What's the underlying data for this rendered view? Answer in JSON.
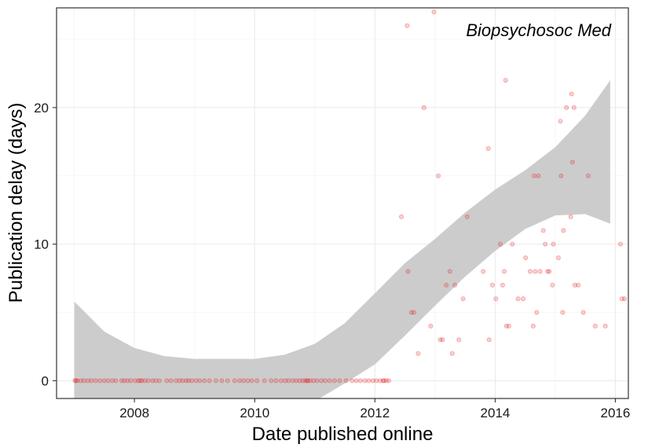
{
  "chart_data": {
    "type": "scatter",
    "annotation": "Biopsychosoc Med",
    "xlabel": "Date published online",
    "ylabel": "Publication delay (days)",
    "xlim": [
      "2006-09-15",
      "2016-03-20"
    ],
    "ylim": [
      -1.3,
      27.3
    ],
    "x_ticks": [
      {
        "date": "2008-01-01",
        "label": "2008"
      },
      {
        "date": "2010-01-01",
        "label": "2010"
      },
      {
        "date": "2012-01-01",
        "label": "2012"
      },
      {
        "date": "2014-01-01",
        "label": "2014"
      },
      {
        "date": "2016-01-01",
        "label": "2016"
      }
    ],
    "y_ticks": [
      0,
      10,
      20
    ],
    "grid": true,
    "point_color": "#e41a1c",
    "band_color": "#cccccc",
    "series": [
      {
        "points": [
          [
            "2007-01-05",
            0
          ],
          [
            "2007-01-20",
            0
          ],
          [
            "2007-02-10",
            0
          ],
          [
            "2007-03-01",
            0
          ],
          [
            "2007-03-25",
            0
          ],
          [
            "2007-04-15",
            0
          ],
          [
            "2007-05-10",
            0
          ],
          [
            "2007-06-05",
            0
          ],
          [
            "2007-07-01",
            0
          ],
          [
            "2007-07-25",
            0
          ],
          [
            "2007-08-20",
            0
          ],
          [
            "2007-09-10",
            0
          ],
          [
            "2007-10-15",
            0
          ],
          [
            "2007-11-01",
            0
          ],
          [
            "2007-11-20",
            0
          ],
          [
            "2007-12-10",
            0
          ],
          [
            "2008-01-05",
            0
          ],
          [
            "2008-01-25",
            0
          ],
          [
            "2008-02-15",
            0
          ],
          [
            "2008-03-05",
            0
          ],
          [
            "2008-03-25",
            0
          ],
          [
            "2008-04-20",
            0
          ],
          [
            "2008-05-10",
            0
          ],
          [
            "2008-06-01",
            0
          ],
          [
            "2008-07-15",
            0
          ],
          [
            "2008-08-10",
            0
          ],
          [
            "2008-09-10",
            0
          ],
          [
            "2008-10-01",
            0
          ],
          [
            "2008-10-20",
            0
          ],
          [
            "2008-11-10",
            0
          ],
          [
            "2008-11-25",
            0
          ],
          [
            "2008-12-15",
            0
          ],
          [
            "2009-01-10",
            0
          ],
          [
            "2009-02-01",
            0
          ],
          [
            "2009-03-01",
            0
          ],
          [
            "2009-04-01",
            0
          ],
          [
            "2009-05-10",
            0
          ],
          [
            "2009-06-15",
            0
          ],
          [
            "2009-07-20",
            0
          ],
          [
            "2009-09-01",
            0
          ],
          [
            "2009-10-01",
            0
          ],
          [
            "2009-10-25",
            0
          ],
          [
            "2009-11-20",
            0
          ],
          [
            "2009-12-15",
            0
          ],
          [
            "2010-01-15",
            0
          ],
          [
            "2010-03-01",
            0
          ],
          [
            "2010-04-10",
            0
          ],
          [
            "2010-05-10",
            0
          ],
          [
            "2010-06-10",
            0
          ],
          [
            "2010-07-05",
            0
          ],
          [
            "2010-07-25",
            0
          ],
          [
            "2010-08-20",
            0
          ],
          [
            "2010-09-10",
            0
          ],
          [
            "2010-10-01",
            0
          ],
          [
            "2010-10-20",
            0
          ],
          [
            "2010-11-05",
            0
          ],
          [
            "2010-11-20",
            0
          ],
          [
            "2010-12-05",
            0
          ],
          [
            "2010-12-25",
            0
          ],
          [
            "2011-01-15",
            0
          ],
          [
            "2011-02-10",
            0
          ],
          [
            "2011-03-05",
            0
          ],
          [
            "2011-04-01",
            0
          ],
          [
            "2011-05-01",
            0
          ],
          [
            "2011-06-01",
            0
          ],
          [
            "2011-07-10",
            0
          ],
          [
            "2011-08-15",
            0
          ],
          [
            "2011-09-10",
            0
          ],
          [
            "2011-10-05",
            0
          ],
          [
            "2011-11-01",
            0
          ],
          [
            "2011-11-25",
            0
          ],
          [
            "2011-12-20",
            0
          ],
          [
            "2012-01-10",
            0
          ],
          [
            "2012-02-01",
            0
          ],
          [
            "2012-02-20",
            0
          ],
          [
            "2012-03-10",
            0
          ],
          [
            "2012-03-25",
            0
          ],
          [
            "2012-06-10",
            12
          ],
          [
            "2012-07-15",
            26
          ],
          [
            "2012-07-20",
            8
          ],
          [
            "2012-08-10",
            5
          ],
          [
            "2012-08-25",
            5
          ],
          [
            "2012-09-20",
            2
          ],
          [
            "2012-10-25",
            20
          ],
          [
            "2012-12-05",
            4
          ],
          [
            "2012-12-25",
            27
          ],
          [
            "2013-01-20",
            15
          ],
          [
            "2013-02-01",
            3
          ],
          [
            "2013-02-15",
            3
          ],
          [
            "2013-03-10",
            7
          ],
          [
            "2013-04-01",
            8
          ],
          [
            "2013-04-15",
            2
          ],
          [
            "2013-05-01",
            7
          ],
          [
            "2013-05-25",
            3
          ],
          [
            "2013-06-20",
            6
          ],
          [
            "2013-07-15",
            12
          ],
          [
            "2013-10-20",
            8
          ],
          [
            "2013-11-20",
            17
          ],
          [
            "2013-11-25",
            3
          ],
          [
            "2013-12-15",
            7
          ],
          [
            "2014-01-05",
            6
          ],
          [
            "2014-02-01",
            10
          ],
          [
            "2014-02-15",
            7
          ],
          [
            "2014-02-25",
            8
          ],
          [
            "2014-03-05",
            22
          ],
          [
            "2014-03-10",
            4
          ],
          [
            "2014-03-25",
            4
          ],
          [
            "2014-04-15",
            10
          ],
          [
            "2014-05-20",
            6
          ],
          [
            "2014-06-20",
            6
          ],
          [
            "2014-07-05",
            9
          ],
          [
            "2014-08-01",
            8
          ],
          [
            "2014-08-20",
            4
          ],
          [
            "2014-08-25",
            15
          ],
          [
            "2014-09-01",
            8
          ],
          [
            "2014-09-10",
            5
          ],
          [
            "2014-09-20",
            15
          ],
          [
            "2014-10-01",
            8
          ],
          [
            "2014-10-20",
            11
          ],
          [
            "2014-11-01",
            10
          ],
          [
            "2014-11-15",
            8
          ],
          [
            "2014-11-25",
            8
          ],
          [
            "2014-12-15",
            7
          ],
          [
            "2014-12-20",
            10
          ],
          [
            "2015-01-20",
            9
          ],
          [
            "2015-02-01",
            19
          ],
          [
            "2015-02-05",
            15
          ],
          [
            "2015-02-15",
            5
          ],
          [
            "2015-02-20",
            11
          ],
          [
            "2015-03-10",
            20
          ],
          [
            "2015-04-05",
            12
          ],
          [
            "2015-04-10",
            21
          ],
          [
            "2015-04-15",
            16
          ],
          [
            "2015-04-25",
            20
          ],
          [
            "2015-04-30",
            7
          ],
          [
            "2015-05-20",
            7
          ],
          [
            "2015-06-20",
            5
          ],
          [
            "2015-07-20",
            15
          ],
          [
            "2015-09-01",
            4
          ],
          [
            "2015-11-01",
            4
          ],
          [
            "2016-02-01",
            10
          ],
          [
            "2016-02-10",
            6
          ],
          [
            "2016-02-25",
            6
          ],
          [
            "2007-01-10",
            0
          ],
          [
            "2008-02-05",
            0
          ],
          [
            "2010-11-15",
            0
          ],
          [
            "2012-02-25",
            0
          ]
        ]
      }
    ],
    "smooth_band": {
      "x": [
        "2007-01-01",
        "2007-07-01",
        "2008-01-01",
        "2008-07-01",
        "2009-01-01",
        "2009-07-01",
        "2010-01-01",
        "2010-07-01",
        "2011-01-01",
        "2011-07-01",
        "2012-01-01",
        "2012-07-01",
        "2013-01-01",
        "2013-07-01",
        "2014-01-01",
        "2014-07-01",
        "2015-01-01",
        "2015-07-01",
        "2015-12-01"
      ],
      "upper": [
        5.8,
        3.6,
        2.4,
        1.8,
        1.6,
        1.6,
        1.6,
        1.9,
        2.7,
        4.2,
        6.4,
        8.6,
        10.4,
        12.3,
        14.0,
        15.4,
        17.1,
        19.4,
        22.0
      ],
      "lower": [
        -3.0,
        -3.0,
        -3.0,
        -3.0,
        -3.0,
        -3.0,
        -3.0,
        -2.5,
        -1.5,
        -0.2,
        1.2,
        3.3,
        5.5,
        7.6,
        9.5,
        11.1,
        12.1,
        12.2,
        11.5
      ]
    }
  }
}
